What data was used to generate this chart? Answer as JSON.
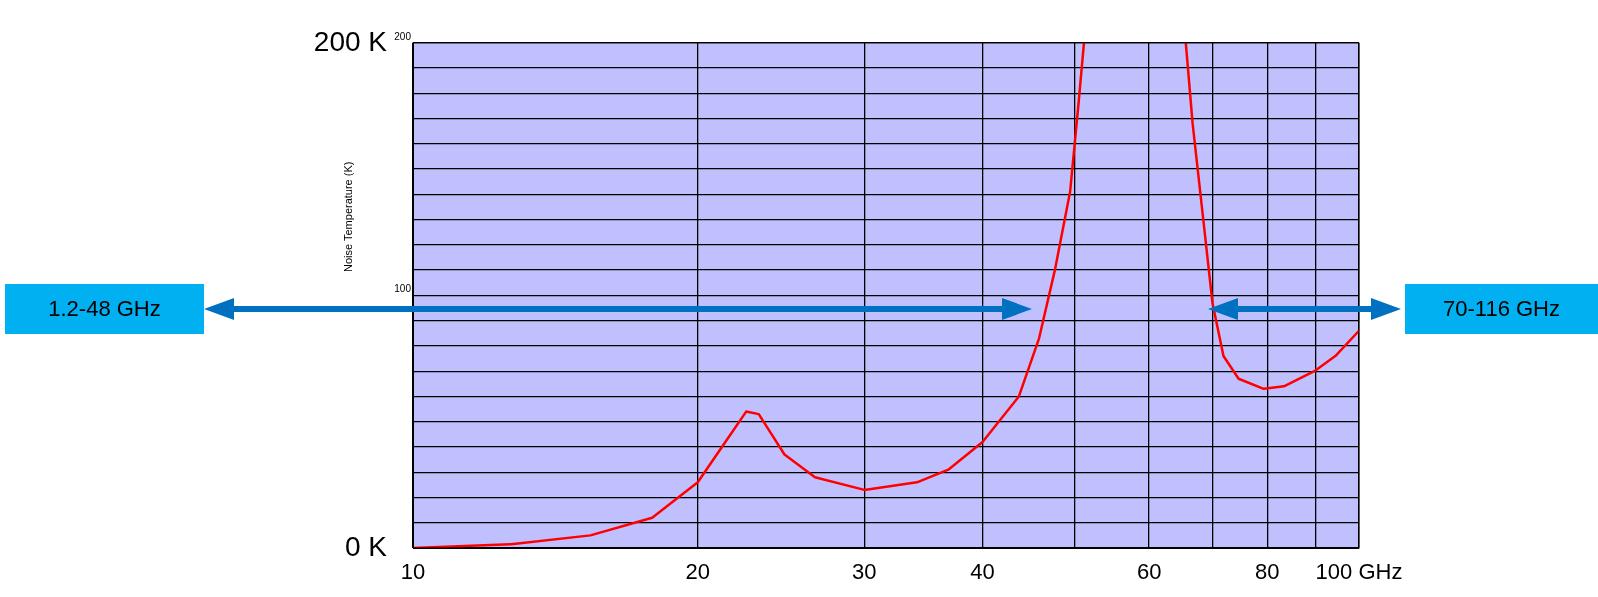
{
  "chart_data": {
    "type": "line",
    "ylabel": "Noise Temperature (K)",
    "log": "x",
    "grid": true,
    "legend": false,
    "marker": "none",
    "line_style": "solid",
    "xlim": [
      10,
      100
    ],
    "xticks": [
      10,
      20,
      30,
      40,
      {
        "value": 50,
        "label": null
      },
      60,
      {
        "value": 70,
        "label": null
      },
      80,
      {
        "value": 90,
        "label": null
      },
      {
        "value": 100,
        "label": "100 GHz"
      }
    ],
    "ylim": [
      0,
      200
    ],
    "yticks": [
      {
        "value": 0,
        "label": "0 K"
      },
      {
        "value": 10,
        "label": null
      },
      {
        "value": 20,
        "label": null
      },
      {
        "value": 30,
        "label": null
      },
      {
        "value": 40,
        "label": null
      },
      {
        "value": 50,
        "label": null
      },
      {
        "value": 60,
        "label": null
      },
      {
        "value": 70,
        "label": null
      },
      {
        "value": 80,
        "label": null
      },
      {
        "value": 90,
        "label": null
      },
      {
        "value": 100,
        "label": null
      },
      {
        "value": 110,
        "label": null
      },
      {
        "value": 120,
        "label": null
      },
      {
        "value": 130,
        "label": null
      },
      {
        "value": 140,
        "label": null
      },
      {
        "value": 150,
        "label": null
      },
      {
        "value": 160,
        "label": null
      },
      {
        "value": 170,
        "label": null
      },
      {
        "value": 180,
        "label": null
      },
      {
        "value": 190,
        "label": null
      },
      {
        "value": 200,
        "label": "200 K"
      }
    ],
    "y2lim": [
      0,
      200
    ],
    "y2ticks": [
      100,
      200
    ],
    "series": [
      {
        "color": "#ff0000",
        "x": [
          10,
          12.7,
          15.4,
          17.9,
          20,
          21.3,
          22.5,
          23.2,
          24.7,
          26.6,
          30,
          34.1,
          36.8,
          40,
          43.7,
          45.9,
          47.7,
          49.5,
          50.5,
          51.2,
          58,
          65.6,
          66.7,
          68.5,
          70,
          71.9,
          74.6,
          79.3,
          83.3,
          89.7,
          94.4,
          100
        ],
        "values": [
          0,
          1.5,
          5,
          12,
          26,
          41,
          54,
          53,
          37,
          28,
          23,
          26,
          31,
          42,
          60,
          83,
          110,
          141,
          175,
          200,
          null,
          200,
          168,
          129,
          97,
          76,
          67,
          63,
          64,
          70,
          76,
          86
        ]
      }
    ],
    "annotations": [
      "1.2-48 GHz",
      "70-116 GHz"
    ]
  }
}
